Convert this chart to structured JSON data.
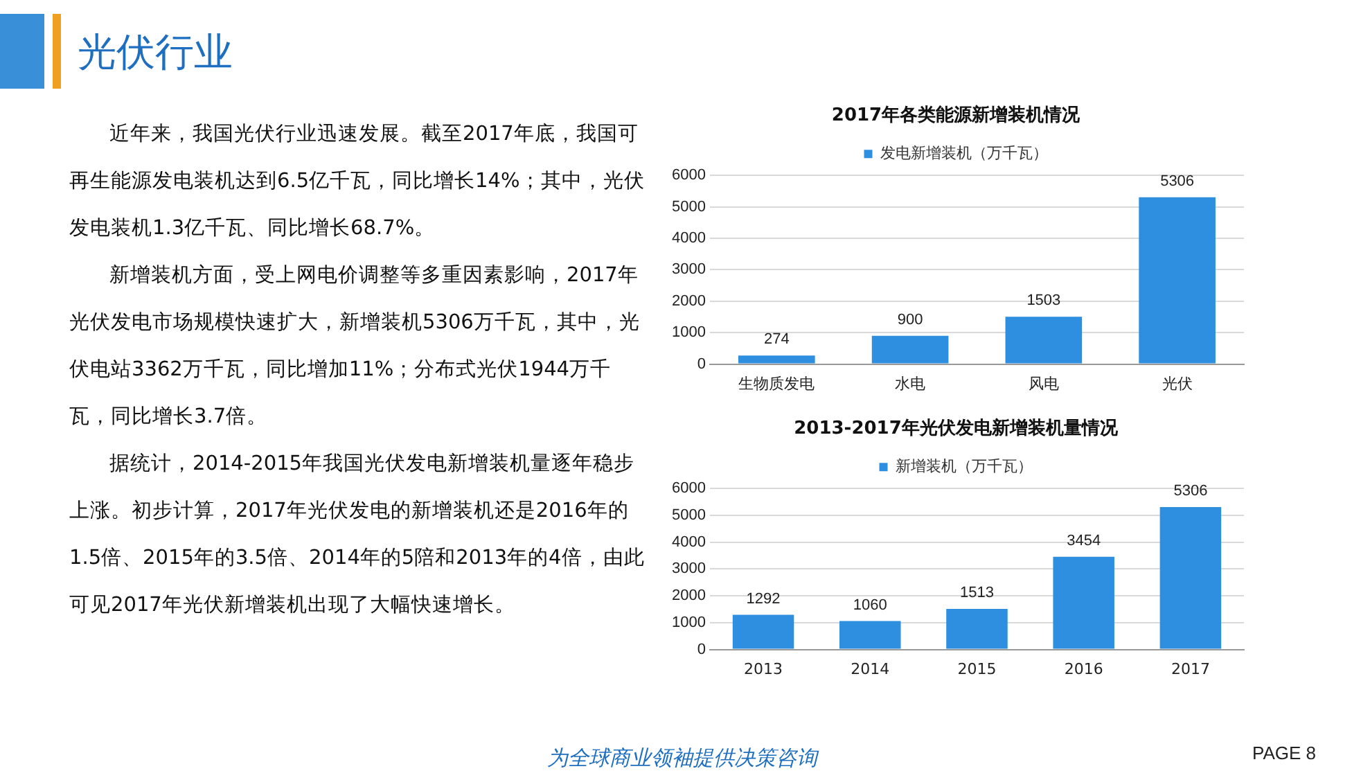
{
  "chart_data": [
    {
      "type": "other",
      "title": "光伏行业",
      "annotations": [
        "近年来，我国光伏行业迅速发展。截至2017年底，我国可再生能源发电装机达到6.5亿千瓦，同比增长14%；其中，光伏发电装机1.3亿千瓦、同比增长68.7%。",
        "新增装机方面，受上网电价调整等多重因素影响，2017年光伏发电市场规模快速扩大，新增装机5306万千瓦，其中，光伏电站3362万千瓦，同比增加11%；分布式光伏1944万千瓦，同比增长3.7倍。",
        "据统计，2014-2015年我国光伏发电新增装机量逐年稳步上涨。初步计算，2017年光伏发电的新增装机还是2016年的1.5倍、2015年的3.5倍、2014年的5陪和2013年的4倍，由此可见2017年光伏新增装机出现了大幅快速增长。",
        "为全球商业领袖提供决策咨询",
        "PAGE  8"
      ]
    },
    {
      "type": "bar",
      "title": "2017年各类能源新增装机情况",
      "categories": [
        "生物质发电",
        "水电",
        "风电",
        "光伏"
      ],
      "series": [
        {
          "name": "发电新增装机（万千瓦）",
          "color": "#2e8fe0",
          "values": [
            274,
            900,
            1503,
            5306
          ]
        }
      ],
      "ylim": [
        0,
        6000
      ],
      "yticks": [
        0,
        1000,
        2000,
        3000,
        4000,
        5000,
        6000
      ],
      "grid": "y",
      "legend": "top",
      "data_labels": true
    },
    {
      "type": "bar",
      "title": "2013-2017年光伏发电新增装机量情况",
      "categories": [
        "2013",
        "2014",
        "2015",
        "2016",
        "2017"
      ],
      "series": [
        {
          "name": "新增装机（万千瓦）",
          "color": "#2e8fe0",
          "values": [
            1292,
            1060,
            1513,
            3454,
            5306
          ]
        }
      ],
      "ylim": [
        0,
        6000
      ],
      "yticks": [
        0,
        1000,
        2000,
        3000,
        4000,
        5000,
        6000
      ],
      "grid": "y",
      "legend": "top",
      "data_labels": true
    }
  ]
}
